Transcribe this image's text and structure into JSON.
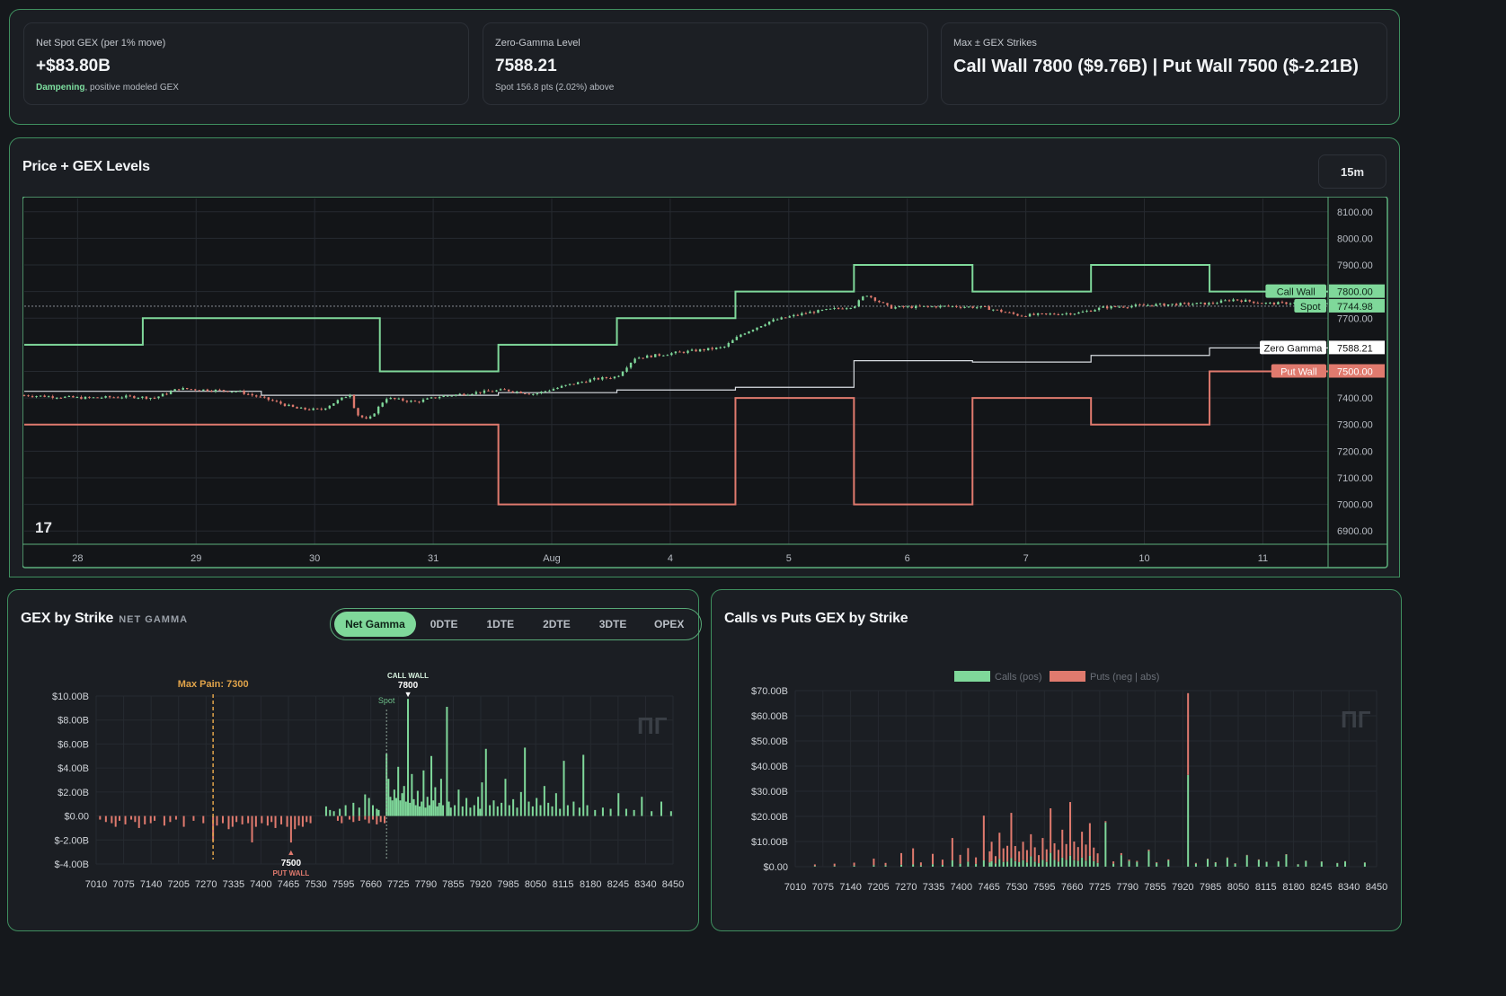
{
  "stats": [
    {
      "label": "Net Spot GEX (per 1% move)",
      "value": "+$83.80B",
      "sub_accent": "Dampening",
      "sub_rest": ", positive modeled GEX"
    },
    {
      "label": "Zero-Gamma Level",
      "value": "7588.21",
      "sub_accent": "",
      "sub_rest": "Spot 156.8 pts (2.02%) above"
    },
    {
      "label": "Max ± GEX Strikes",
      "value": "Call Wall 7800 ($9.76B) | Put Wall 7500 ($-2.21B)",
      "sub_accent": "",
      "sub_rest": ""
    }
  ],
  "price_panel": {
    "title": "Price + GEX Levels",
    "timeframe": "15m"
  },
  "gex_panel": {
    "title": "GEX by Strike",
    "subtitle": "NET GAMMA",
    "tabs": [
      "Net Gamma",
      "0DTE",
      "1DTE",
      "2DTE",
      "3DTE",
      "OPEX"
    ],
    "active_tab": "Net Gamma"
  },
  "cvp_panel": {
    "title": "Calls vs Puts GEX by Strike"
  },
  "colors": {
    "up": "#7fd89a",
    "down": "#e07a6e",
    "zero": "#d9dde2",
    "panel_border": "#3f8f5f",
    "max_pain": "#e0a34a",
    "grid": "#262a30"
  },
  "chart_data": [
    {
      "type": "line",
      "title": "Price + GEX Levels",
      "ylim": [
        6850,
        8150
      ],
      "y_ticks": [
        "8100.00",
        "8000.00",
        "7900.00",
        "7800.00",
        "7700.00",
        "7600.00",
        "7500.00",
        "7400.00",
        "7300.00",
        "7200.00",
        "7100.00",
        "7000.00",
        "6900.00"
      ],
      "x_ticks": [
        "28",
        "29",
        "30",
        "31",
        "Aug",
        "4",
        "5",
        "6",
        "7",
        "10",
        "11"
      ],
      "periods": 11,
      "series": [
        {
          "name": "Call Wall",
          "values": [
            7600,
            7700,
            7700,
            7500,
            7600,
            7700,
            7800,
            7900,
            7800,
            7900,
            7800
          ],
          "last": "7800.00",
          "color": "#7fd89a"
        },
        {
          "name": "Zero Gamma",
          "values": [
            7425,
            7425,
            7410,
            7410,
            7420,
            7430,
            7440,
            7540,
            7535,
            7560,
            7588.21
          ],
          "last": "7588.21",
          "color": "#d9dde2"
        },
        {
          "name": "Put Wall",
          "values": [
            7300,
            7300,
            7300,
            7300,
            7000,
            7000,
            7400,
            7000,
            7400,
            7300,
            7500
          ],
          "last": "7500.00",
          "color": "#e07a6e"
        },
        {
          "name": "Spot",
          "values": [],
          "last": "7744.98",
          "color": "#7fd89a"
        }
      ],
      "price_anchors": [
        [
          0,
          7410
        ],
        [
          0.5,
          7400
        ],
        [
          0.9,
          7405
        ],
        [
          1.1,
          7400
        ],
        [
          1.3,
          7435
        ],
        [
          1.8,
          7425
        ],
        [
          2.05,
          7395
        ],
        [
          2.3,
          7360
        ],
        [
          2.5,
          7355
        ],
        [
          2.75,
          7415
        ],
        [
          2.8,
          7340
        ],
        [
          2.9,
          7315
        ],
        [
          3.05,
          7400
        ],
        [
          3.3,
          7385
        ],
        [
          3.5,
          7405
        ],
        [
          3.8,
          7420
        ],
        [
          4.05,
          7430
        ],
        [
          4.3,
          7415
        ],
        [
          4.6,
          7450
        ],
        [
          4.8,
          7470
        ],
        [
          5.0,
          7480
        ],
        [
          5.15,
          7550
        ],
        [
          5.5,
          7570
        ],
        [
          5.9,
          7590
        ],
        [
          6.05,
          7640
        ],
        [
          6.3,
          7690
        ],
        [
          6.6,
          7720
        ],
        [
          7.0,
          7745
        ],
        [
          7.1,
          7790
        ],
        [
          7.3,
          7740
        ],
        [
          7.8,
          7745
        ],
        [
          8.1,
          7740
        ],
        [
          8.4,
          7710
        ],
        [
          8.9,
          7720
        ],
        [
          9.1,
          7740
        ],
        [
          9.5,
          7750
        ],
        [
          10.0,
          7755
        ],
        [
          10.2,
          7770
        ],
        [
          10.5,
          7755
        ],
        [
          10.9,
          7760
        ],
        [
          11.3,
          7745
        ]
      ]
    },
    {
      "type": "bar",
      "title": "GEX by Strike",
      "ylim": [
        -4.0,
        10.0
      ],
      "y_ticks": [
        "$10.00B",
        "$8.00B",
        "$6.00B",
        "$4.00B",
        "$2.00B",
        "$0.00",
        "$-2.00B",
        "$-4.00B"
      ],
      "x_range": [
        7000,
        8480
      ],
      "x_ticks": [
        "7010",
        "7075",
        "7140",
        "7205",
        "7270",
        "7335",
        "7400",
        "7465",
        "7530",
        "7595",
        "7660",
        "7725",
        "7790",
        "7855",
        "7920",
        "7985",
        "8050",
        "8115",
        "8180",
        "8245",
        "8340",
        "8450"
      ],
      "annotations": {
        "max_pain_label": "Max Pain: 7300",
        "max_pain_strike": 7300,
        "call_wall_label": "CALL WALL",
        "call_wall_strike": "7800",
        "put_wall_label": "PUT WALL",
        "put_wall_strike": "7500",
        "spot_label": "Spot",
        "spot_strike": 7745
      },
      "negative_bars": [
        [
          7010,
          -0.3
        ],
        [
          7025,
          -0.5
        ],
        [
          7040,
          -0.6
        ],
        [
          7050,
          -0.9
        ],
        [
          7060,
          -0.4
        ],
        [
          7075,
          -0.7
        ],
        [
          7090,
          -0.3
        ],
        [
          7100,
          -0.5
        ],
        [
          7110,
          -1.0
        ],
        [
          7125,
          -0.7
        ],
        [
          7140,
          -0.6
        ],
        [
          7150,
          -0.4
        ],
        [
          7175,
          -0.8
        ],
        [
          7190,
          -0.5
        ],
        [
          7205,
          -0.3
        ],
        [
          7225,
          -0.9
        ],
        [
          7250,
          -0.4
        ],
        [
          7275,
          -0.6
        ],
        [
          7300,
          -2.1
        ],
        [
          7310,
          -0.8
        ],
        [
          7325,
          -0.6
        ],
        [
          7340,
          -1.1
        ],
        [
          7350,
          -0.9
        ],
        [
          7360,
          -0.5
        ],
        [
          7375,
          -0.7
        ],
        [
          7390,
          -0.6
        ],
        [
          7400,
          -2.2
        ],
        [
          7410,
          -0.9
        ],
        [
          7425,
          -0.6
        ],
        [
          7440,
          -0.8
        ],
        [
          7450,
          -0.5
        ],
        [
          7460,
          -1.0
        ],
        [
          7475,
          -0.7
        ],
        [
          7490,
          -0.9
        ],
        [
          7500,
          -2.21
        ],
        [
          7510,
          -1.1
        ],
        [
          7520,
          -0.8
        ],
        [
          7530,
          -0.9
        ],
        [
          7540,
          -0.5
        ],
        [
          7550,
          -0.6
        ],
        [
          7620,
          -0.4
        ],
        [
          7630,
          -0.6
        ],
        [
          7650,
          -0.3
        ],
        [
          7660,
          -0.5
        ],
        [
          7675,
          -0.4
        ],
        [
          7690,
          -0.3
        ],
        [
          7700,
          -0.6
        ],
        [
          7710,
          -0.3
        ],
        [
          7720,
          -0.7
        ],
        [
          7730,
          -0.5
        ],
        [
          7740,
          -0.6
        ]
      ],
      "positive_bars": [
        [
          7590,
          0.8
        ],
        [
          7600,
          0.5
        ],
        [
          7610,
          0.4
        ],
        [
          7625,
          0.6
        ],
        [
          7640,
          0.9
        ],
        [
          7660,
          1.1
        ],
        [
          7675,
          0.7
        ],
        [
          7690,
          1.8
        ],
        [
          7700,
          1.5
        ],
        [
          7710,
          0.9
        ],
        [
          7720,
          0.6
        ],
        [
          7725,
          0.5
        ],
        [
          7745,
          5.2
        ],
        [
          7750,
          3.1
        ],
        [
          7755,
          1.6
        ],
        [
          7760,
          1.3
        ],
        [
          7765,
          2.2
        ],
        [
          7770,
          1.5
        ],
        [
          7775,
          4.1
        ],
        [
          7780,
          1.3
        ],
        [
          7785,
          1.9
        ],
        [
          7790,
          2.5
        ],
        [
          7795,
          1.2
        ],
        [
          7800,
          9.76
        ],
        [
          7805,
          1.1
        ],
        [
          7810,
          3.5
        ],
        [
          7815,
          1.4
        ],
        [
          7820,
          0.9
        ],
        [
          7825,
          2.1
        ],
        [
          7830,
          0.8
        ],
        [
          7835,
          1.2
        ],
        [
          7840,
          3.8
        ],
        [
          7845,
          0.7
        ],
        [
          7850,
          1.6
        ],
        [
          7855,
          0.9
        ],
        [
          7860,
          5.0
        ],
        [
          7865,
          1.3
        ],
        [
          7870,
          2.4
        ],
        [
          7875,
          0.8
        ],
        [
          7880,
          1.1
        ],
        [
          7885,
          3.1
        ],
        [
          7890,
          0.9
        ],
        [
          7900,
          9.1
        ],
        [
          7905,
          1.2
        ],
        [
          7910,
          0.7
        ],
        [
          7920,
          0.9
        ],
        [
          7930,
          2.2
        ],
        [
          7940,
          0.8
        ],
        [
          7950,
          1.5
        ],
        [
          7960,
          0.7
        ],
        [
          7970,
          0.9
        ],
        [
          7980,
          1.6
        ],
        [
          7985,
          0.6
        ],
        [
          7990,
          2.8
        ],
        [
          8000,
          5.6
        ],
        [
          8010,
          0.9
        ],
        [
          8020,
          1.3
        ],
        [
          8030,
          0.8
        ],
        [
          8040,
          1.1
        ],
        [
          8050,
          3.1
        ],
        [
          8060,
          0.9
        ],
        [
          8070,
          1.4
        ],
        [
          8080,
          0.7
        ],
        [
          8090,
          2.0
        ],
        [
          8100,
          5.7
        ],
        [
          8110,
          1.2
        ],
        [
          8120,
          0.8
        ],
        [
          8130,
          1.5
        ],
        [
          8140,
          0.9
        ],
        [
          8150,
          2.5
        ],
        [
          8160,
          1.1
        ],
        [
          8170,
          0.8
        ],
        [
          8180,
          1.9
        ],
        [
          8190,
          0.6
        ],
        [
          8200,
          4.6
        ],
        [
          8210,
          0.9
        ],
        [
          8225,
          1.2
        ],
        [
          8240,
          0.7
        ],
        [
          8250,
          5.1
        ],
        [
          8260,
          0.9
        ],
        [
          8280,
          0.5
        ],
        [
          8300,
          0.7
        ],
        [
          8320,
          0.6
        ],
        [
          8340,
          1.9
        ],
        [
          8360,
          0.6
        ],
        [
          8380,
          0.5
        ],
        [
          8400,
          1.6
        ],
        [
          8425,
          0.4
        ],
        [
          8450,
          1.2
        ],
        [
          8475,
          0.4
        ]
      ]
    },
    {
      "type": "bar",
      "title": "Calls vs Puts GEX by Strike",
      "ylim": [
        0,
        70
      ],
      "y_ticks": [
        "$70.00B",
        "$60.00B",
        "$50.00B",
        "$40.00B",
        "$30.00B",
        "$20.00B",
        "$10.00B",
        "$0.00"
      ],
      "x_range": [
        7000,
        8480
      ],
      "x_ticks": [
        "7010",
        "7075",
        "7140",
        "7205",
        "7270",
        "7335",
        "7400",
        "7465",
        "7530",
        "7595",
        "7660",
        "7725",
        "7790",
        "7855",
        "7920",
        "7985",
        "8050",
        "8115",
        "8180",
        "8245",
        "8340",
        "8450"
      ],
      "legend": [
        "Calls (pos)",
        "Puts (neg | abs)"
      ],
      "stacked_bars": [
        [
          7050,
          0.3,
          0.6
        ],
        [
          7100,
          0.3,
          0.9
        ],
        [
          7150,
          0.4,
          1.2
        ],
        [
          7200,
          0.6,
          2.6
        ],
        [
          7230,
          0.5,
          1.0
        ],
        [
          7270,
          0.8,
          4.6
        ],
        [
          7300,
          0.9,
          6.4
        ],
        [
          7320,
          0.5,
          1.2
        ],
        [
          7350,
          1.0,
          4.1
        ],
        [
          7375,
          0.7,
          2.1
        ],
        [
          7400,
          2.5,
          8.9
        ],
        [
          7420,
          1.2,
          3.5
        ],
        [
          7440,
          2.0,
          5.4
        ],
        [
          7460,
          1.1,
          2.6
        ],
        [
          7480,
          2.5,
          17.8
        ],
        [
          7495,
          1.7,
          4.4
        ],
        [
          7500,
          2.21,
          7.7
        ],
        [
          7510,
          1.3,
          2.9
        ],
        [
          7520,
          3.1,
          10.4
        ],
        [
          7530,
          1.9,
          5.4
        ],
        [
          7540,
          2.0,
          6.3
        ],
        [
          7550,
          3.4,
          18.0
        ],
        [
          7560,
          2.2,
          6.0
        ],
        [
          7570,
          1.8,
          4.3
        ],
        [
          7580,
          2.6,
          7.3
        ],
        [
          7590,
          1.7,
          4.9
        ],
        [
          7600,
          4.1,
          8.8
        ],
        [
          7610,
          2.0,
          5.7
        ],
        [
          7620,
          1.4,
          3.2
        ],
        [
          7630,
          2.7,
          8.7
        ],
        [
          7640,
          1.9,
          5.0
        ],
        [
          7650,
          5.5,
          17.7
        ],
        [
          7660,
          2.7,
          6.6
        ],
        [
          7670,
          2.0,
          4.7
        ],
        [
          7680,
          3.6,
          11.1
        ],
        [
          7690,
          2.7,
          6.3
        ],
        [
          7700,
          4.4,
          21.3
        ],
        [
          7710,
          2.6,
          7.4
        ],
        [
          7720,
          2.3,
          5.5
        ],
        [
          7730,
          3.6,
          10.3
        ],
        [
          7740,
          2.4,
          6.4
        ],
        [
          7750,
          4.3,
          13.0
        ],
        [
          7760,
          2.2,
          5.4
        ],
        [
          7770,
          1.5,
          3.8
        ],
        [
          7790,
          17.6,
          0.5
        ],
        [
          7810,
          1.2,
          0.9
        ],
        [
          7830,
          4.6,
          0.8
        ],
        [
          7850,
          2.3,
          0.5
        ],
        [
          7870,
          1.9,
          0.4
        ],
        [
          7900,
          6.3,
          0.5
        ],
        [
          7920,
          1.5,
          0.3
        ],
        [
          7950,
          2.5,
          0.4
        ],
        [
          8000,
          36.5,
          32.5
        ],
        [
          8020,
          1.2,
          0.3
        ],
        [
          8050,
          3.0,
          0.2
        ],
        [
          8070,
          1.6,
          0.2
        ],
        [
          8100,
          3.5,
          0.2
        ],
        [
          8120,
          1.2,
          0.2
        ],
        [
          8150,
          4.5,
          0.2
        ],
        [
          8180,
          2.7,
          0.2
        ],
        [
          8200,
          1.9,
          0.1
        ],
        [
          8230,
          2.1,
          0.1
        ],
        [
          8250,
          4.8,
          0.2
        ],
        [
          8280,
          0.9,
          0.1
        ],
        [
          8300,
          2.3,
          0.1
        ],
        [
          8340,
          2.0,
          0.1
        ],
        [
          8380,
          1.4,
          0.1
        ],
        [
          8400,
          2.1,
          0.1
        ],
        [
          8450,
          1.6,
          0.1
        ]
      ]
    }
  ]
}
